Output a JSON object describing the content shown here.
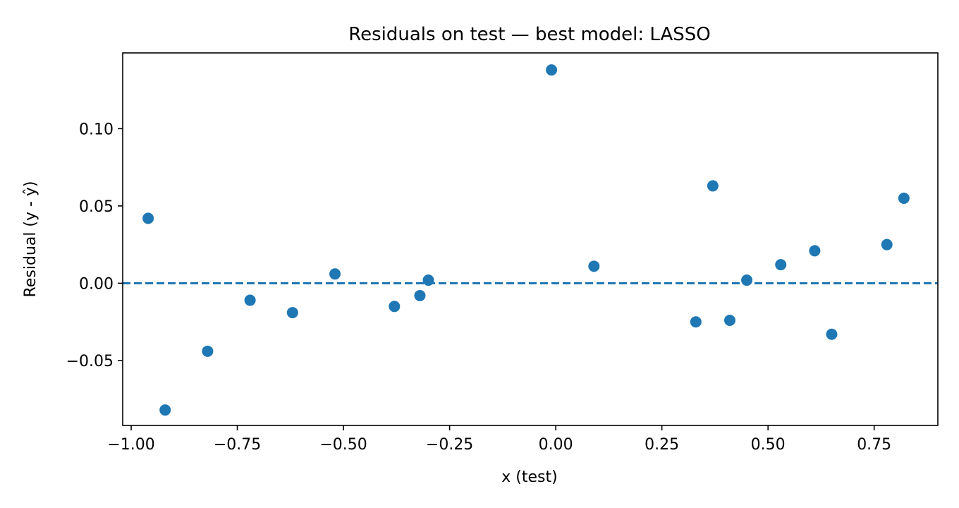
{
  "chart_data": {
    "type": "scatter",
    "title": "Residuals on test — best model: LASSO",
    "xlabel": "x (test)",
    "ylabel": "Residual (y - ŷ)",
    "xlim": [
      -1.02,
      0.9
    ],
    "ylim": [
      -0.092,
      0.149
    ],
    "xticks": [
      -1.0,
      -0.75,
      -0.5,
      -0.25,
      0.0,
      0.25,
      0.5,
      0.75
    ],
    "xtick_labels": [
      "−1.00",
      "−0.75",
      "−0.50",
      "−0.25",
      "0.00",
      "0.25",
      "0.50",
      "0.75"
    ],
    "yticks": [
      -0.05,
      0.0,
      0.05,
      0.1
    ],
    "ytick_labels": [
      "−0.05",
      "0.00",
      "0.05",
      "0.10"
    ],
    "grid": false,
    "reference_line": {
      "y": 0.0,
      "style": "dashed",
      "color": "#1f77b4"
    },
    "series": [
      {
        "color": "#1f77b4",
        "points": [
          {
            "x": -0.96,
            "y": 0.042
          },
          {
            "x": -0.92,
            "y": -0.082
          },
          {
            "x": -0.82,
            "y": -0.044
          },
          {
            "x": -0.72,
            "y": -0.011
          },
          {
            "x": -0.62,
            "y": -0.019
          },
          {
            "x": -0.52,
            "y": 0.006
          },
          {
            "x": -0.38,
            "y": -0.015
          },
          {
            "x": -0.32,
            "y": -0.008
          },
          {
            "x": -0.3,
            "y": 0.002
          },
          {
            "x": -0.01,
            "y": 0.138
          },
          {
            "x": 0.09,
            "y": 0.011
          },
          {
            "x": 0.33,
            "y": -0.025
          },
          {
            "x": 0.37,
            "y": 0.063
          },
          {
            "x": 0.41,
            "y": -0.024
          },
          {
            "x": 0.45,
            "y": 0.002
          },
          {
            "x": 0.53,
            "y": 0.012
          },
          {
            "x": 0.61,
            "y": 0.021
          },
          {
            "x": 0.65,
            "y": -0.033
          },
          {
            "x": 0.78,
            "y": 0.025
          },
          {
            "x": 0.82,
            "y": 0.055
          }
        ]
      }
    ]
  }
}
